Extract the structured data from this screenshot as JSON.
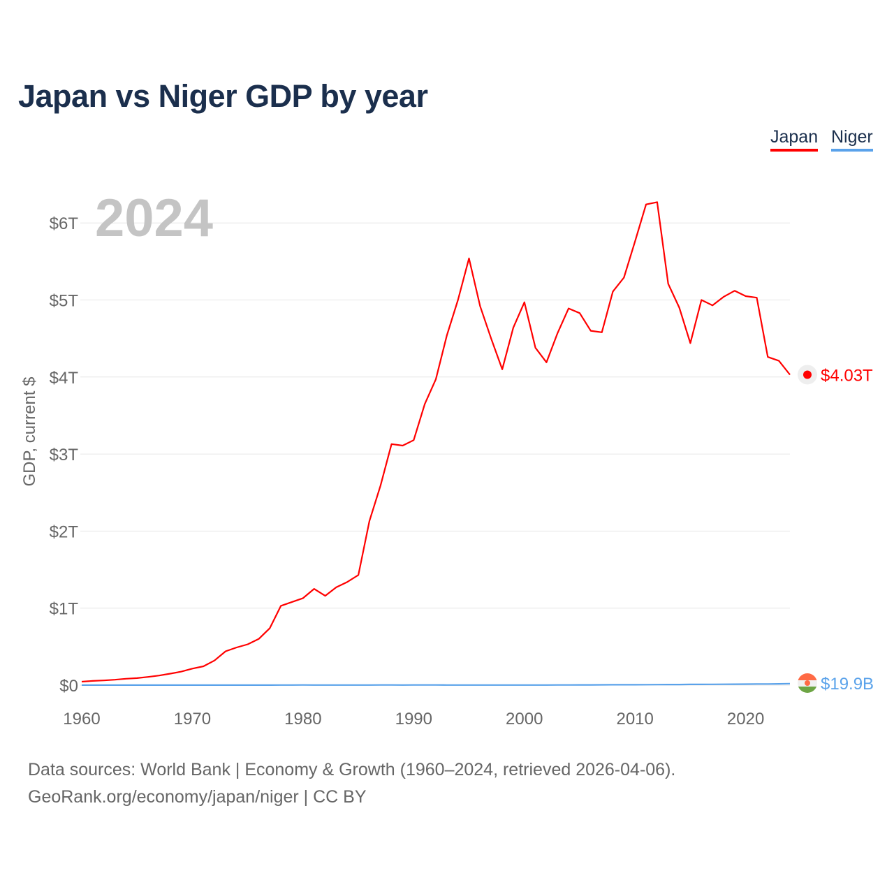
{
  "chart_data": {
    "type": "line",
    "title": "Japan vs Niger GDP by year",
    "ylabel": "GDP, current $",
    "xlabel": "",
    "year_watermark": "2024",
    "xlim": [
      1960,
      2024
    ],
    "ylim": [
      0,
      6
    ],
    "y_unit": "trillions USD",
    "grid": true,
    "legend_position": "top-right",
    "x_ticks": [
      "1960",
      "1970",
      "1980",
      "1990",
      "2000",
      "2010",
      "2020"
    ],
    "y_ticks": [
      {
        "v": 0,
        "label": "$0"
      },
      {
        "v": 1,
        "label": "$1T"
      },
      {
        "v": 2,
        "label": "$2T"
      },
      {
        "v": 3,
        "label": "$3T"
      },
      {
        "v": 4,
        "label": "$4T"
      },
      {
        "v": 5,
        "label": "$5T"
      },
      {
        "v": 6,
        "label": "$6T"
      }
    ],
    "x": [
      1960,
      1961,
      1962,
      1963,
      1964,
      1965,
      1966,
      1967,
      1968,
      1969,
      1970,
      1971,
      1972,
      1973,
      1974,
      1975,
      1976,
      1977,
      1978,
      1979,
      1980,
      1981,
      1982,
      1983,
      1984,
      1985,
      1986,
      1987,
      1988,
      1989,
      1990,
      1991,
      1992,
      1993,
      1994,
      1995,
      1996,
      1997,
      1998,
      1999,
      2000,
      2001,
      2002,
      2003,
      2004,
      2005,
      2006,
      2007,
      2008,
      2009,
      2010,
      2011,
      2012,
      2013,
      2014,
      2015,
      2016,
      2017,
      2018,
      2019,
      2020,
      2021,
      2022,
      2023,
      2024
    ],
    "series": [
      {
        "name": "Japan",
        "color": "#ff0000",
        "end_label": "$4.03T",
        "values": [
          0.045,
          0.055,
          0.062,
          0.071,
          0.083,
          0.092,
          0.107,
          0.125,
          0.15,
          0.176,
          0.215,
          0.245,
          0.32,
          0.44,
          0.49,
          0.53,
          0.6,
          0.74,
          1.03,
          1.08,
          1.13,
          1.25,
          1.16,
          1.27,
          1.34,
          1.43,
          2.13,
          2.59,
          3.13,
          3.11,
          3.18,
          3.65,
          3.97,
          4.54,
          5.0,
          5.54,
          4.92,
          4.5,
          4.1,
          4.64,
          4.97,
          4.38,
          4.19,
          4.57,
          4.89,
          4.83,
          4.6,
          4.58,
          5.11,
          5.29,
          5.76,
          6.24,
          6.27,
          5.21,
          4.9,
          4.44,
          5.0,
          4.93,
          5.04,
          5.12,
          5.05,
          5.03,
          4.26,
          4.21,
          4.03
        ]
      },
      {
        "name": "Niger",
        "color": "#5aa2ea",
        "end_label": "$19.9B",
        "values": [
          0.00054,
          0.00058,
          0.0006,
          0.00067,
          0.0007,
          0.00068,
          0.00071,
          0.0007,
          0.00069,
          0.00068,
          0.00072,
          0.00075,
          0.0008,
          0.00085,
          0.0009,
          0.00095,
          0.0011,
          0.0013,
          0.0017,
          0.0022,
          0.0025,
          0.0022,
          0.0018,
          0.0016,
          0.0014,
          0.0014,
          0.0019,
          0.0023,
          0.0023,
          0.0022,
          0.0025,
          0.0024,
          0.0023,
          0.0016,
          0.0016,
          0.0019,
          0.0019,
          0.0018,
          0.0021,
          0.002,
          0.0018,
          0.0019,
          0.0021,
          0.0027,
          0.0031,
          0.0034,
          0.0036,
          0.0043,
          0.0054,
          0.0054,
          0.0057,
          0.0064,
          0.0071,
          0.0078,
          0.0084,
          0.0097,
          0.0104,
          0.0112,
          0.0121,
          0.0128,
          0.0137,
          0.015,
          0.0154,
          0.0171,
          0.0199
        ]
      }
    ]
  },
  "legend": [
    "Japan",
    "Niger"
  ],
  "footer": {
    "line1": "Data sources: World Bank | Economy & Growth (1960–2024, retrieved 2026-04-06).",
    "line2": "GeoRank.org/economy/japan/niger | CC BY"
  }
}
